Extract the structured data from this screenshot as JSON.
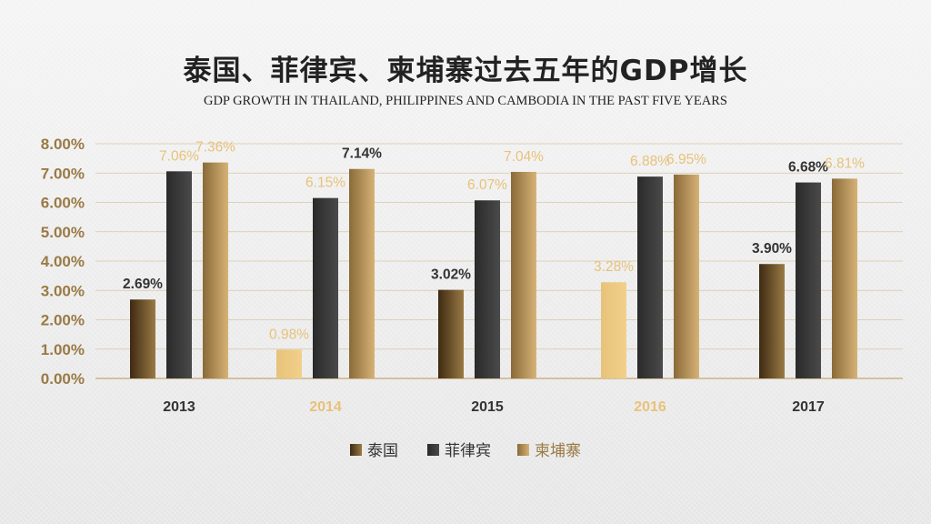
{
  "title": "泰国、菲律宾、柬埔寨过去五年的GDP增长",
  "subtitle": "GDP GROWTH IN THAILAND, PHILIPPINES AND CAMBODIA IN THE PAST FIVE YEARS",
  "chart_data": {
    "type": "bar",
    "categories": [
      "2013",
      "2014",
      "2015",
      "2016",
      "2017"
    ],
    "series": [
      {
        "name": "泰国",
        "values": [
          2.69,
          0.98,
          3.02,
          3.28,
          3.9
        ],
        "labels": [
          "2.69%",
          "0.98%",
          "3.02%",
          "3.28%",
          "3.90%"
        ]
      },
      {
        "name": "菲律宾",
        "values": [
          7.06,
          6.15,
          6.07,
          6.88,
          6.68
        ],
        "labels": [
          "7.06%",
          "6.15%",
          "6.07%",
          "6.88%",
          "6.68%"
        ]
      },
      {
        "name": "柬埔寨",
        "values": [
          7.36,
          7.14,
          7.04,
          6.95,
          6.81
        ],
        "labels": [
          "7.36%",
          "7.14%",
          "7.04%",
          "6.95%",
          "6.81%"
        ]
      }
    ],
    "yticks": [
      "0.00%",
      "1.00%",
      "2.00%",
      "3.00%",
      "4.00%",
      "5.00%",
      "6.00%",
      "7.00%",
      "8.00%"
    ],
    "ylim": [
      0,
      8
    ],
    "grid": true,
    "legend": "bottom",
    "colors": {
      "thailand": [
        "#3e2a12",
        "#9a7a45"
      ],
      "philippines": [
        "#2a2a2a",
        "#4a4a4a"
      ],
      "cambodia": [
        "#8a6a38",
        "#d6b276"
      ],
      "highlight": [
        "#e7c27a",
        "#f2d08a"
      ],
      "tick_label": "#9a7a45",
      "category_highlight": "#e7c27a",
      "data_label": "#333333",
      "axis": "#c8a670"
    }
  }
}
